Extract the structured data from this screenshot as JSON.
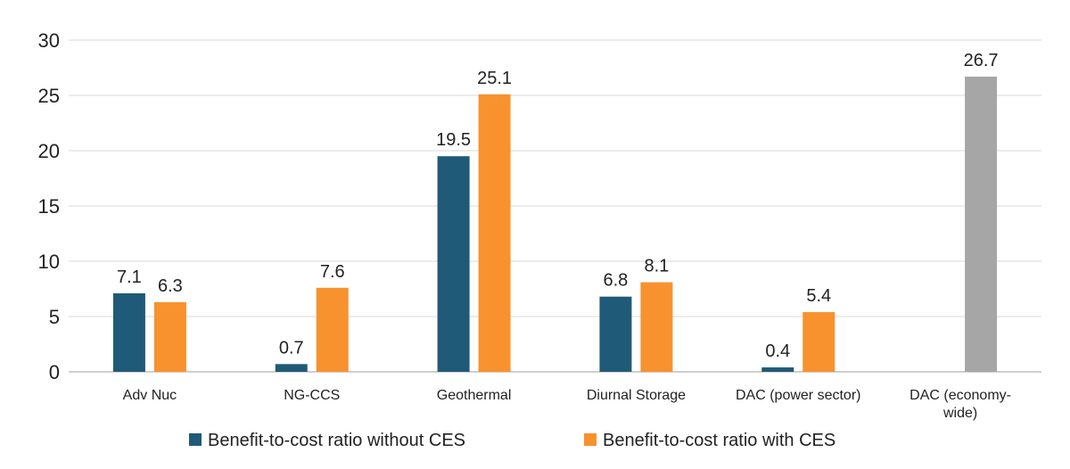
{
  "chart_data": {
    "type": "bar",
    "title": "",
    "xlabel": "",
    "ylabel": "",
    "ylim": [
      0,
      30
    ],
    "yticks": [
      0,
      5,
      10,
      15,
      20,
      25,
      30
    ],
    "grid": true,
    "legend_position": "bottom",
    "categories": [
      [
        "Adv Nuc"
      ],
      [
        "NG-CCS"
      ],
      [
        "Geothermal"
      ],
      [
        "Diurnal Storage"
      ],
      [
        "DAC (power sector)"
      ],
      [
        "DAC (economy-",
        "wide)"
      ]
    ],
    "series": [
      {
        "name": "Benefit-to-cost ratio without CES",
        "color": "#1f5a78",
        "values": [
          7.1,
          0.7,
          19.5,
          6.8,
          0.4,
          null
        ],
        "labels": [
          "7.1",
          "0.7",
          "19.5",
          "6.8",
          "0.4",
          null
        ]
      },
      {
        "name": "Benefit-to-cost ratio with CES",
        "color": "#f7922e",
        "values": [
          6.3,
          7.6,
          25.1,
          8.1,
          5.4,
          null
        ],
        "labels": [
          "6.3",
          "7.6",
          "25.1",
          "8.1",
          "5.4",
          null
        ]
      }
    ],
    "extra_bars": [
      {
        "category_index": 5,
        "value": 26.7,
        "label": "26.7",
        "color": "#a6a6a6"
      }
    ],
    "legend": [
      {
        "label": "Benefit-to-cost ratio without CES",
        "color": "#1f5a78"
      },
      {
        "label": "Benefit-to-cost ratio with CES",
        "color": "#f7922e"
      }
    ],
    "gridline_color": "#d9d9d9",
    "axis_color": "#bfbfbf"
  }
}
